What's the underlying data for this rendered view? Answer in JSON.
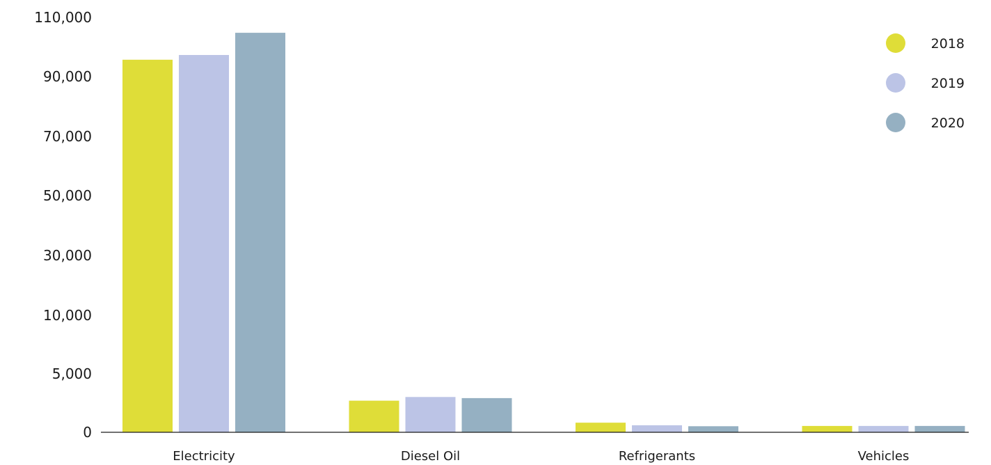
{
  "chart_data": {
    "type": "bar",
    "categories": [
      "Electricity",
      "Diesel Oil",
      "Refrigerants",
      "Vehicles"
    ],
    "series": [
      {
        "name": "2018",
        "color": "#dfdd38",
        "values": [
          95700,
          2700,
          820,
          540
        ]
      },
      {
        "name": "2019",
        "color": "#bcc4e6",
        "values": [
          97300,
          3020,
          600,
          540
        ]
      },
      {
        "name": "2020",
        "color": "#95b0c2",
        "values": [
          104800,
          2920,
          520,
          540
        ]
      }
    ],
    "y_ticks": [
      {
        "value": 0,
        "label": "0"
      },
      {
        "value": 5000,
        "label": "5,000"
      },
      {
        "value": 10000,
        "label": "10,000"
      },
      {
        "value": 30000,
        "label": "30,000"
      },
      {
        "value": 50000,
        "label": "50,000"
      },
      {
        "value": 70000,
        "label": "70,000"
      },
      {
        "value": 90000,
        "label": "90,000"
      },
      {
        "value": 110000,
        "label": "110,000"
      }
    ],
    "ylim": [
      0,
      110000
    ],
    "grid": false,
    "legend_position": "top-right",
    "title": "",
    "xlabel": "",
    "ylabel": ""
  }
}
